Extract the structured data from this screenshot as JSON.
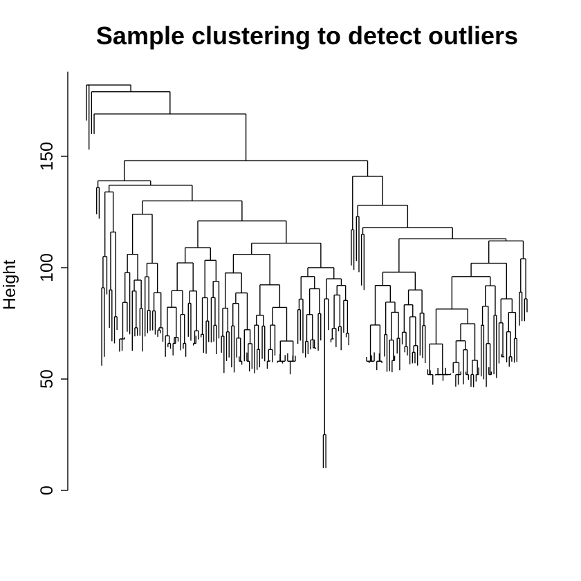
{
  "chart_data": {
    "type": "dendrogram",
    "title": "Sample clustering to detect outliers",
    "xlabel": "",
    "ylabel": "Height",
    "ylim": [
      0,
      190
    ],
    "y_ticks": [
      "0",
      "50",
      "100",
      "150"
    ],
    "grid": false,
    "legend": "none",
    "leaf_count": 160,
    "notable_merge_heights": {
      "top_outlier_merges": [
        182,
        179,
        169
      ],
      "main_split": 148,
      "left_major_cluster": 139,
      "right_major_cluster": 141,
      "right_subcluster": 112,
      "lowest_pair": 25
    }
  }
}
